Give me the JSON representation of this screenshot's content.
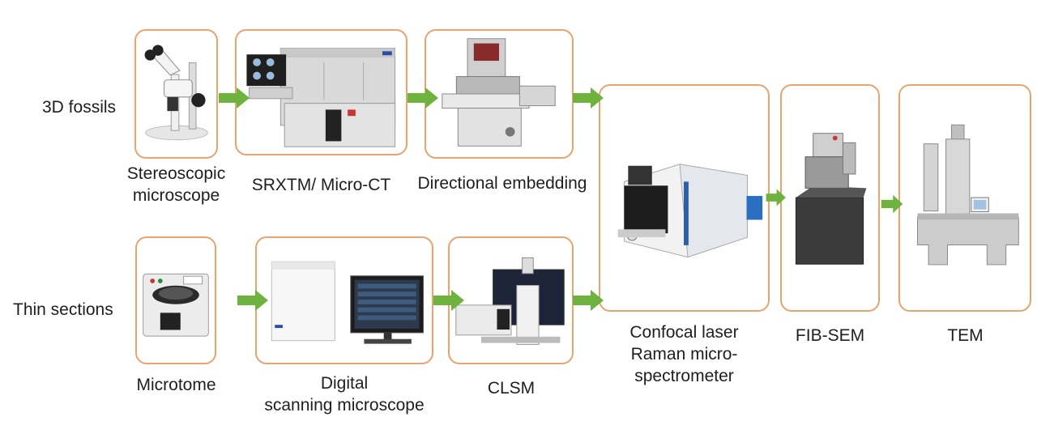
{
  "rows": {
    "fossils": "3D fossils",
    "sections": "Thin sections"
  },
  "instruments": {
    "stereo": [
      "Stereoscopic",
      "microscope"
    ],
    "srxtm": "SRXTM/ Micro-CT",
    "embedding": "Directional embedding",
    "microtome": "Microtome",
    "digital": [
      "Digital",
      "scanning microscope"
    ],
    "clsm": "CLSM",
    "raman": [
      "Confocal laser",
      "Raman micro-",
      "spectrometer"
    ],
    "fibsem": "FIB-SEM",
    "tem": "TEM"
  },
  "colors": {
    "box_border": "#e8a46f",
    "arrow": "#6fb33f"
  }
}
